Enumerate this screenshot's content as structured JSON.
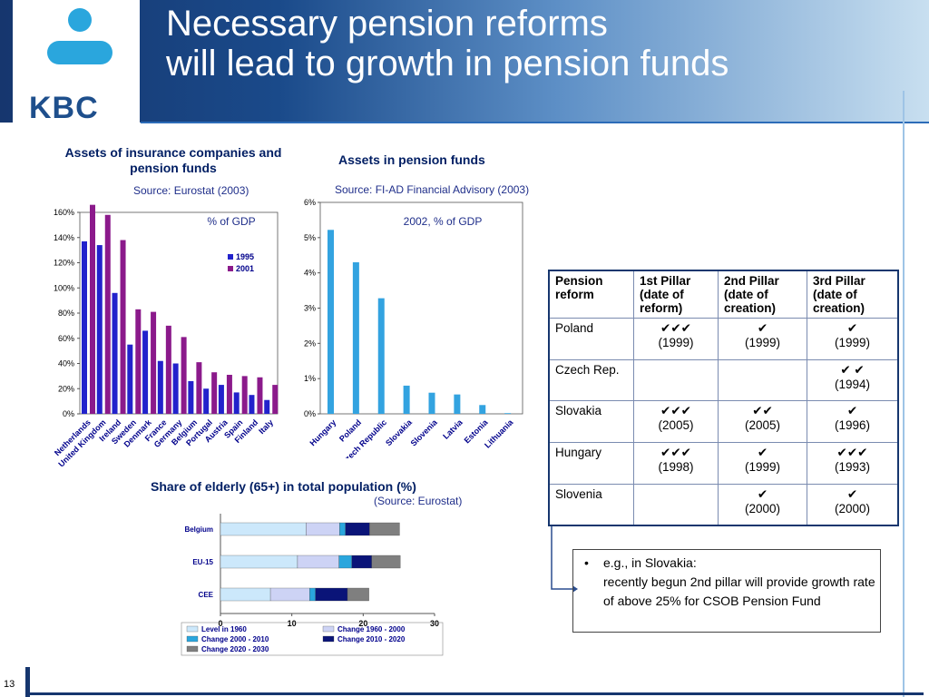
{
  "title": {
    "line1": "Necessary pension reforms",
    "line2": "will lead to growth in pension funds"
  },
  "logo": {
    "text": "KBC",
    "icon": "kbc-logo-icon",
    "color": "#1e4f8c"
  },
  "page_number": "13",
  "chart_data": [
    {
      "type": "bar",
      "title": "Assets of insurance companies and pension funds",
      "source": "Source: Eurostat (2003)",
      "annotation": "% of GDP",
      "categories": [
        "Netherlands",
        "United Kingdom",
        "Ireland",
        "Sweden",
        "Denmark",
        "France",
        "Germany",
        "Belgium",
        "Portugal",
        "Austria",
        "Spain",
        "Finland",
        "Italy"
      ],
      "series": [
        {
          "name": "1995",
          "color": "#2222cc",
          "values": [
            137,
            134,
            96,
            55,
            66,
            42,
            40,
            26,
            20,
            23,
            17,
            15,
            11
          ]
        },
        {
          "name": "2001",
          "color": "#8b1a8b",
          "values": [
            166,
            158,
            138,
            83,
            81,
            70,
            61,
            41,
            33,
            31,
            30,
            29,
            23
          ]
        }
      ],
      "ylim": [
        0,
        160
      ],
      "yticks": [
        "0%",
        "20%",
        "40%",
        "60%",
        "80%",
        "100%",
        "120%",
        "140%",
        "160%"
      ],
      "legend": "right"
    },
    {
      "type": "bar",
      "title": "Assets in pension funds",
      "source": "Source: FI-AD Financial Advisory (2003)",
      "annotation": "2002, % of GDP",
      "categories": [
        "Hungary",
        "Poland",
        "Czech Republic",
        "Slovakia",
        "Slovenia",
        "Latvia",
        "Estonia",
        "Lithuania"
      ],
      "series": [
        {
          "name": "",
          "color": "#33a3e0",
          "values": [
            5.22,
            4.3,
            3.28,
            0.8,
            0.6,
            0.55,
            0.25,
            0.02
          ]
        }
      ],
      "ylim": [
        0,
        6
      ],
      "yticks": [
        "0%",
        "1%",
        "2%",
        "3%",
        "4%",
        "5%",
        "6%"
      ]
    },
    {
      "type": "bar",
      "orientation": "horizontal-stacked",
      "title": "Share of elderly (65+) in total population (%)",
      "source": "(Source: Eurostat)",
      "categories": [
        "Belgium",
        "EU-15",
        "CEE"
      ],
      "series": [
        {
          "name": "Level in 1960",
          "color": "#cce8fb",
          "values": [
            12.0,
            10.8,
            7.0
          ]
        },
        {
          "name": "Change 1960 - 2000",
          "color": "#cdd3f5",
          "values": [
            4.7,
            5.8,
            5.5
          ]
        },
        {
          "name": "Change 2000 - 2010",
          "color": "#2aa6dd",
          "values": [
            0.8,
            1.8,
            0.8
          ]
        },
        {
          "name": "Change 2010 - 2020",
          "color": "#0a1478",
          "values": [
            3.4,
            2.8,
            4.5
          ]
        },
        {
          "name": "Change 2020 - 2030",
          "color": "#7f7f7f",
          "values": [
            4.2,
            4.0,
            3.0
          ]
        }
      ],
      "xlim": [
        0,
        30
      ],
      "xticks": [
        "0",
        "10",
        "20",
        "30"
      ],
      "legend": "bottom"
    }
  ],
  "table": {
    "headers": [
      "Pension reform",
      "1st Pillar (date of reform)",
      "2nd Pillar (date of creation)",
      "3rd Pillar (date of creation)"
    ],
    "rows": [
      {
        "country": "Poland",
        "c1": {
          "ticks": "✔✔✔",
          "year": "(1999)"
        },
        "c2": {
          "ticks": "✔",
          "year": "(1999)"
        },
        "c3": {
          "ticks": "✔",
          "year": "(1999)"
        }
      },
      {
        "country": "Czech Rep.",
        "c1": {
          "ticks": "",
          "year": ""
        },
        "c2": {
          "ticks": "",
          "year": ""
        },
        "c3": {
          "ticks": "✔ ✔",
          "year": "(1994)"
        }
      },
      {
        "country": "Slovakia",
        "c1": {
          "ticks": "✔✔✔",
          "year": "(2005)"
        },
        "c2": {
          "ticks": "✔✔",
          "year": "(2005)"
        },
        "c3": {
          "ticks": "✔",
          "year": "(1996)"
        }
      },
      {
        "country": "Hungary",
        "c1": {
          "ticks": "✔✔✔",
          "year": "(1998)"
        },
        "c2": {
          "ticks": "✔",
          "year": "(1999)"
        },
        "c3": {
          "ticks": "✔✔✔",
          "year": "(1993)"
        }
      },
      {
        "country": "Slovenia",
        "c1": {
          "ticks": "",
          "year": ""
        },
        "c2": {
          "ticks": "✔",
          "year": "(2000)"
        },
        "c3": {
          "ticks": "✔",
          "year": "(2000)"
        }
      }
    ]
  },
  "note": {
    "bullet": "•",
    "text": "e.g., in Slovakia:\nrecently begun 2nd pillar will provide growth rate of above 25% for CSOB Pension Fund"
  }
}
